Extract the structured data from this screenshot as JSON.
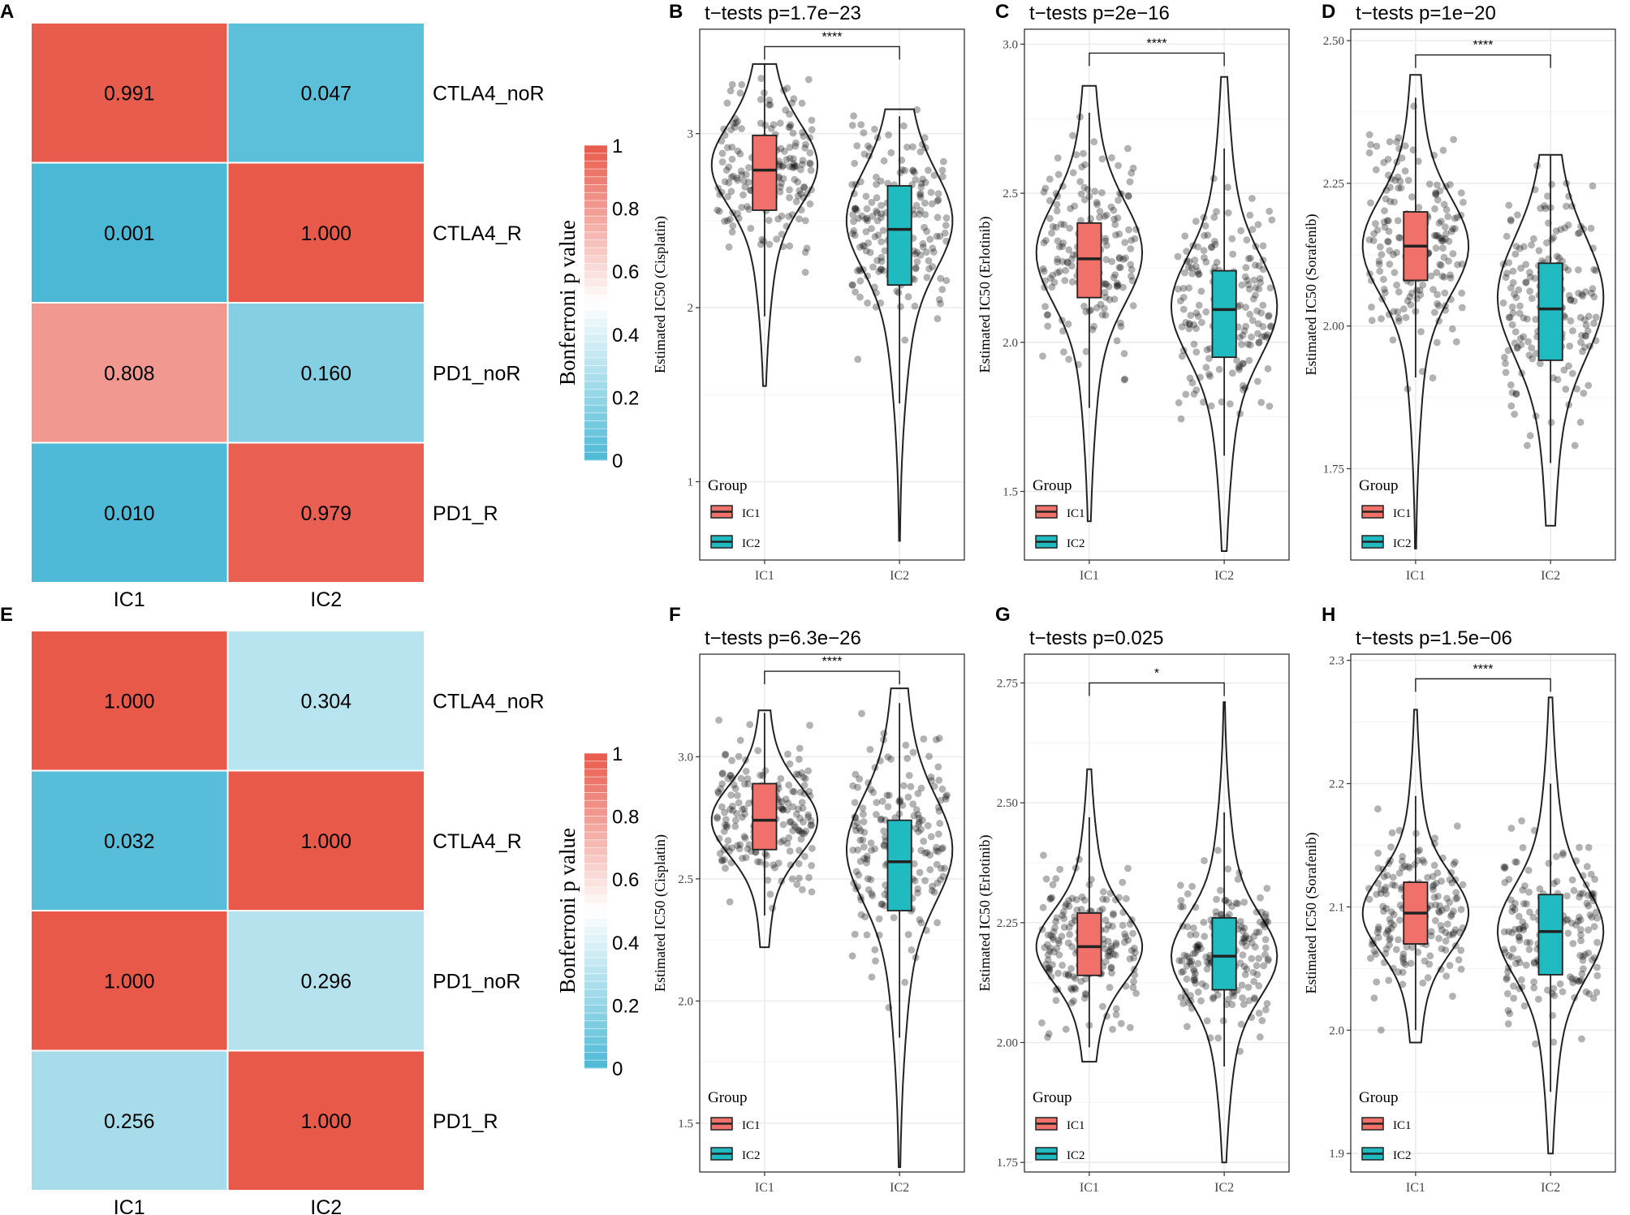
{
  "colors": {
    "high": "#e8594a",
    "low": "#4bb9d6",
    "box_ic1": "#f0706a",
    "box_ic2": "#1fbbc0",
    "grid": "#ebebeb",
    "point": "#000000"
  },
  "heatmaps": [
    {
      "panel": "A",
      "row_labels": [
        "CTLA4_noR",
        "CTLA4_R",
        "PD1_noR",
        "PD1_R"
      ],
      "col_labels": [
        "IC1",
        "IC2"
      ],
      "values": [
        [
          0.991,
          0.047
        ],
        [
          0.001,
          1.0
        ],
        [
          0.808,
          0.16
        ],
        [
          0.01,
          0.979
        ]
      ],
      "cell_text": [
        [
          "0.991",
          "0.047"
        ],
        [
          "0.001",
          "1.000"
        ],
        [
          "0.808",
          "0.160"
        ],
        [
          "0.010",
          "0.979"
        ]
      ],
      "legend": {
        "title": "Bonferroni p value",
        "ticks": [
          "1",
          "0.8",
          "0.6",
          "0.4",
          "0.2",
          "0"
        ]
      }
    },
    {
      "panel": "E",
      "row_labels": [
        "CTLA4_noR",
        "CTLA4_R",
        "PD1_noR",
        "PD1_R"
      ],
      "col_labels": [
        "IC1",
        "IC2"
      ],
      "values": [
        [
          1.0,
          0.304
        ],
        [
          0.032,
          1.0
        ],
        [
          1.0,
          0.296
        ],
        [
          0.256,
          1.0
        ]
      ],
      "cell_text": [
        [
          "1.000",
          "0.304"
        ],
        [
          "0.032",
          "1.000"
        ],
        [
          "1.000",
          "0.296"
        ],
        [
          "0.256",
          "1.000"
        ]
      ],
      "legend": {
        "title": "Bonferroni p value",
        "ticks": [
          "1",
          "0.8",
          "0.6",
          "0.4",
          "0.2",
          "0"
        ]
      }
    }
  ],
  "chart_data": [
    {
      "panel": "B",
      "type": "violin",
      "title": "t−tests p=1.7e−23",
      "ylabel": "Estimated IC50 (Cisplatin)",
      "categories": [
        "IC1",
        "IC2"
      ],
      "ylim": [
        0.55,
        3.6
      ],
      "yticks": [
        1,
        2,
        3
      ],
      "ytick_labels": [
        "1",
        "2",
        "3"
      ],
      "significance": "****",
      "bracket_y": 3.5,
      "groups": [
        {
          "name": "IC1",
          "q1": 2.56,
          "median": 2.79,
          "q3": 2.99,
          "whisker_low": 1.95,
          "whisker_high": 3.4,
          "violin_min": 1.55,
          "violin_max": 3.4,
          "mode": 2.82,
          "spread": 0.22,
          "tail": 0.5
        },
        {
          "name": "IC2",
          "q1": 2.13,
          "median": 2.45,
          "q3": 2.7,
          "whisker_low": 1.45,
          "whisker_high": 3.1,
          "violin_min": 0.66,
          "violin_max": 3.14,
          "mode": 2.5,
          "spread": 0.26,
          "tail": 0.6
        }
      ],
      "legend": {
        "title": "Group",
        "entries": [
          "IC1",
          "IC2"
        ]
      }
    },
    {
      "panel": "C",
      "type": "violin",
      "title": "t−tests p=2e−16",
      "ylabel": "Estimated IC50 (Erlotinib)",
      "categories": [
        "IC1",
        "IC2"
      ],
      "ylim": [
        1.27,
        3.05
      ],
      "yticks": [
        1.5,
        2.0,
        2.5,
        3.0
      ],
      "ytick_labels": [
        "1.5",
        "2.0",
        "2.5",
        "3.0"
      ],
      "significance": "****",
      "bracket_y": 2.97,
      "groups": [
        {
          "name": "IC1",
          "q1": 2.15,
          "median": 2.28,
          "q3": 2.4,
          "whisker_low": 1.78,
          "whisker_high": 2.77,
          "violin_min": 1.4,
          "violin_max": 2.86,
          "mode": 2.3,
          "spread": 0.16,
          "tail": 0.45
        },
        {
          "name": "IC2",
          "q1": 1.95,
          "median": 2.11,
          "q3": 2.24,
          "whisker_low": 1.62,
          "whisker_high": 2.65,
          "violin_min": 1.3,
          "violin_max": 2.89,
          "mode": 2.12,
          "spread": 0.16,
          "tail": 0.5
        }
      ],
      "legend": {
        "title": "Group",
        "entries": [
          "IC1",
          "IC2"
        ]
      }
    },
    {
      "panel": "D",
      "type": "violin",
      "title": "t−tests p=1e−20",
      "ylabel": "Estimated IC50 (Sorafenib)",
      "categories": [
        "IC1",
        "IC2"
      ],
      "ylim": [
        1.59,
        2.52
      ],
      "yticks": [
        1.75,
        2.0,
        2.25,
        2.5
      ],
      "ytick_labels": [
        "1.75",
        "2.00",
        "2.25",
        "2.50"
      ],
      "significance": "****",
      "bracket_y": 2.475,
      "groups": [
        {
          "name": "IC1",
          "q1": 2.08,
          "median": 2.14,
          "q3": 2.2,
          "whisker_low": 1.91,
          "whisker_high": 2.4,
          "violin_min": 1.61,
          "violin_max": 2.44,
          "mode": 2.14,
          "spread": 0.08,
          "tail": 0.4
        },
        {
          "name": "IC2",
          "q1": 1.94,
          "median": 2.03,
          "q3": 2.11,
          "whisker_low": 1.76,
          "whisker_high": 2.3,
          "violin_min": 1.65,
          "violin_max": 2.3,
          "mode": 2.05,
          "spread": 0.1,
          "tail": 0.4
        }
      ],
      "legend": {
        "title": "Group",
        "entries": [
          "IC1",
          "IC2"
        ]
      }
    },
    {
      "panel": "F",
      "type": "violin",
      "title": "t−tests p=6.3e−26",
      "ylabel": "Estimated IC50 (Cisplatin)",
      "categories": [
        "IC1",
        "IC2"
      ],
      "ylim": [
        1.3,
        3.42
      ],
      "yticks": [
        1.5,
        2.0,
        2.5,
        3.0
      ],
      "ytick_labels": [
        "1.5",
        "2.0",
        "2.5",
        "3.0"
      ],
      "significance": "****",
      "bracket_y": 3.35,
      "groups": [
        {
          "name": "IC1",
          "q1": 2.62,
          "median": 2.74,
          "q3": 2.89,
          "whisker_low": 2.35,
          "whisker_high": 3.18,
          "violin_min": 2.22,
          "violin_max": 3.19,
          "mode": 2.74,
          "spread": 0.14,
          "tail": 0.3
        },
        {
          "name": "IC2",
          "q1": 2.37,
          "median": 2.57,
          "q3": 2.74,
          "whisker_low": 1.85,
          "whisker_high": 3.22,
          "violin_min": 1.32,
          "violin_max": 3.28,
          "mode": 2.62,
          "spread": 0.2,
          "tail": 0.55
        }
      ],
      "legend": {
        "title": "Group",
        "entries": [
          "IC1",
          "IC2"
        ]
      }
    },
    {
      "panel": "G",
      "type": "violin",
      "title": "t−tests p=0.025",
      "ylabel": "Estimated IC50 (Erlotinib)",
      "categories": [
        "IC1",
        "IC2"
      ],
      "ylim": [
        1.73,
        2.81
      ],
      "yticks": [
        1.75,
        2.0,
        2.25,
        2.5,
        2.75
      ],
      "ytick_labels": [
        "1.75",
        "2.00",
        "2.25",
        "2.50",
        "2.75"
      ],
      "significance": "*",
      "bracket_y": 2.75,
      "groups": [
        {
          "name": "IC1",
          "q1": 2.14,
          "median": 2.2,
          "q3": 2.27,
          "whisker_low": 1.99,
          "whisker_high": 2.47,
          "violin_min": 1.96,
          "violin_max": 2.57,
          "mode": 2.2,
          "spread": 0.07,
          "tail": 0.45
        },
        {
          "name": "IC2",
          "q1": 2.11,
          "median": 2.18,
          "q3": 2.26,
          "whisker_low": 1.95,
          "whisker_high": 2.48,
          "violin_min": 1.75,
          "violin_max": 2.71,
          "mode": 2.18,
          "spread": 0.08,
          "tail": 0.5
        }
      ],
      "legend": {
        "title": "Group",
        "entries": [
          "IC1",
          "IC2"
        ]
      }
    },
    {
      "panel": "H",
      "type": "violin",
      "title": "t−tests p=1.5e−06",
      "ylabel": "Estimated IC50 (Sorafenib)",
      "categories": [
        "IC1",
        "IC2"
      ],
      "ylim": [
        1.885,
        2.305
      ],
      "yticks": [
        1.9,
        2.0,
        2.1,
        2.2,
        2.3
      ],
      "ytick_labels": [
        "1.9",
        "2.0",
        "2.1",
        "2.2",
        "2.3"
      ],
      "significance": "****",
      "bracket_y": 2.285,
      "groups": [
        {
          "name": "IC1",
          "q1": 2.07,
          "median": 2.095,
          "q3": 2.12,
          "whisker_low": 2.0,
          "whisker_high": 2.19,
          "violin_min": 1.99,
          "violin_max": 2.26,
          "mode": 2.095,
          "spread": 0.03,
          "tail": 0.35
        },
        {
          "name": "IC2",
          "q1": 2.045,
          "median": 2.08,
          "q3": 2.11,
          "whisker_low": 1.95,
          "whisker_high": 2.2,
          "violin_min": 1.9,
          "violin_max": 2.27,
          "mode": 2.08,
          "spread": 0.035,
          "tail": 0.45
        }
      ],
      "legend": {
        "title": "Group",
        "entries": [
          "IC1",
          "IC2"
        ]
      }
    }
  ]
}
